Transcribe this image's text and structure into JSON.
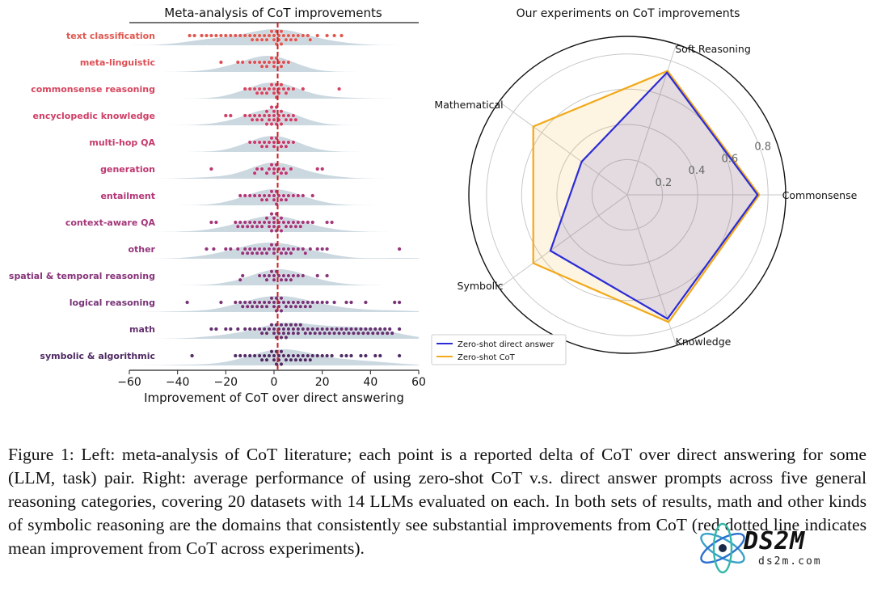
{
  "left_panel": {
    "title": "Meta-analysis of CoT improvements",
    "xlabel": "Improvement of CoT over direct answering",
    "xticks": [
      "−60",
      "−40",
      "−20",
      "0",
      "20",
      "40",
      "60"
    ]
  },
  "right_panel": {
    "title": "Our experiments on CoT improvements",
    "radial_ticks": [
      "0.2",
      "0.4",
      "0.6",
      "0.8"
    ],
    "legend": [
      "Zero-shot direct answer",
      "Zero-shot CoT"
    ]
  },
  "caption": "Figure 1: Left: meta-analysis of CoT literature; each point is a reported delta of CoT over direct answering for some (LLM, task) pair. Right: average performance of using zero-shot CoT v.s. direct answer prompts across five general reasoning categories, covering 20 datasets with 14 LLMs evaluated on each. In both sets of results, math and other kinds of symbolic reasoning are the domains that consistently see substantial improvements from CoT (red dotted line indicates mean improvement from CoT across experiments).",
  "watermark": {
    "logo": "DS2M",
    "site": "ds2m.com"
  },
  "colors": {
    "direct": "#2b2bd6",
    "cot": "#f2a91a",
    "mean_line": "#cc1f1f",
    "density": "#b9cbd6"
  },
  "chart_data": [
    {
      "type": "scatter",
      "title": "Meta-analysis of CoT improvements",
      "xlabel": "Improvement of CoT over direct answering",
      "xlim": [
        -60,
        60
      ],
      "mean_line": 2,
      "categories": [
        {
          "name": "text classification",
          "color": "#e0574f",
          "points": [
            -35,
            -33,
            -30,
            -28,
            -26,
            -24,
            -22,
            -20,
            -18,
            -16,
            -14,
            -12,
            -10,
            -9,
            -8,
            -7,
            -6,
            -5,
            -4,
            -3,
            -2,
            -1,
            0,
            0,
            1,
            1,
            2,
            2,
            3,
            3,
            4,
            5,
            6,
            7,
            8,
            9,
            10,
            12,
            14,
            15,
            18,
            22,
            25,
            28
          ]
        },
        {
          "name": "meta-linguistic",
          "color": "#dc4f55",
          "points": [
            -22,
            -15,
            -13,
            -10,
            -8,
            -6,
            -5,
            -4,
            -3,
            -2,
            -1,
            0,
            0,
            1,
            2,
            3,
            4,
            6
          ]
        },
        {
          "name": "commonsense reasoning",
          "color": "#d6455f",
          "points": [
            -12,
            -10,
            -8,
            -7,
            -6,
            -5,
            -4,
            -3,
            -2,
            -1,
            0,
            0,
            1,
            1,
            2,
            2,
            3,
            4,
            5,
            6,
            8,
            12,
            27
          ]
        },
        {
          "name": "encyclopedic knowledge",
          "color": "#cf3e66",
          "points": [
            -20,
            -18,
            -12,
            -10,
            -9,
            -8,
            -7,
            -6,
            -5,
            -4,
            -3,
            -3,
            -2,
            -2,
            -1,
            -1,
            0,
            0,
            0,
            1,
            1,
            2,
            2,
            3,
            3,
            4,
            5,
            6,
            7,
            8,
            9
          ]
        },
        {
          "name": "multi-hop QA",
          "color": "#c63a6c",
          "points": [
            -10,
            -8,
            -6,
            -5,
            -4,
            -3,
            -2,
            -1,
            0,
            0,
            1,
            2,
            3,
            4,
            5,
            6,
            8
          ]
        },
        {
          "name": "generation",
          "color": "#bd3770",
          "points": [
            -26,
            -8,
            -7,
            -5,
            -3,
            -2,
            -1,
            0,
            0,
            1,
            2,
            3,
            4,
            5,
            7,
            18,
            20
          ]
        },
        {
          "name": "entailment",
          "color": "#b33576",
          "points": [
            -14,
            -12,
            -10,
            -8,
            -6,
            -5,
            -4,
            -3,
            -2,
            -1,
            0,
            0,
            1,
            1,
            2,
            3,
            4,
            5,
            6,
            8,
            10,
            12,
            16
          ]
        },
        {
          "name": "context-aware QA",
          "color": "#a5367a",
          "points": [
            -26,
            -24,
            -16,
            -15,
            -14,
            -13,
            -12,
            -11,
            -10,
            -9,
            -8,
            -7,
            -6,
            -5,
            -4,
            -3,
            -2,
            -2,
            -1,
            -1,
            0,
            0,
            0,
            1,
            1,
            2,
            2,
            3,
            3,
            4,
            5,
            6,
            7,
            8,
            9,
            10,
            11,
            12,
            14,
            16,
            22,
            24
          ]
        },
        {
          "name": "other",
          "color": "#96357c",
          "points": [
            -28,
            -25,
            -20,
            -18,
            -15,
            -13,
            -12,
            -11,
            -10,
            -9,
            -8,
            -7,
            -6,
            -5,
            -4,
            -3,
            -2,
            -1,
            0,
            0,
            1,
            2,
            3,
            4,
            5,
            6,
            7,
            8,
            10,
            12,
            13,
            15,
            18,
            20,
            22,
            52
          ]
        },
        {
          "name": "spatial & temporal reasoning",
          "color": "#87347a",
          "points": [
            -14,
            -13,
            -6,
            -4,
            -3,
            -2,
            -1,
            0,
            0,
            1,
            2,
            3,
            4,
            5,
            6,
            7,
            8,
            10,
            12,
            18,
            22
          ]
        },
        {
          "name": "logical reasoning",
          "color": "#773276",
          "points": [
            -36,
            -22,
            -16,
            -14,
            -13,
            -12,
            -11,
            -10,
            -9,
            -8,
            -7,
            -6,
            -5,
            -4,
            -3,
            -2,
            -1,
            0,
            0,
            1,
            1,
            2,
            2,
            3,
            3,
            4,
            5,
            6,
            7,
            8,
            9,
            10,
            11,
            12,
            13,
            14,
            15,
            16,
            18,
            20,
            22,
            25,
            30,
            32,
            38,
            50,
            52
          ]
        },
        {
          "name": "math",
          "color": "#64306f",
          "points": [
            -26,
            -24,
            -20,
            -18,
            -15,
            -12,
            -10,
            -8,
            -6,
            -5,
            -4,
            -3,
            -2,
            -1,
            0,
            0,
            1,
            1,
            2,
            2,
            3,
            3,
            4,
            4,
            5,
            5,
            6,
            6,
            7,
            8,
            8,
            9,
            10,
            10,
            11,
            12,
            13,
            14,
            15,
            16,
            17,
            18,
            19,
            20,
            21,
            22,
            23,
            24,
            25,
            26,
            27,
            28,
            29,
            30,
            31,
            32,
            33,
            34,
            35,
            36,
            37,
            38,
            39,
            40,
            41,
            42,
            43,
            44,
            45,
            46,
            47,
            48,
            49,
            52
          ]
        },
        {
          "name": "symbolic & algorithmic",
          "color": "#4f2a63",
          "points": [
            -34,
            -16,
            -14,
            -12,
            -10,
            -8,
            -6,
            -5,
            -4,
            -3,
            -2,
            -1,
            0,
            0,
            1,
            1,
            2,
            2,
            3,
            3,
            4,
            5,
            6,
            7,
            8,
            9,
            10,
            11,
            12,
            13,
            14,
            15,
            16,
            18,
            20,
            22,
            24,
            28,
            30,
            32,
            36,
            38,
            42,
            44,
            52
          ]
        }
      ]
    },
    {
      "type": "radar",
      "title": "Our experiments on CoT improvements",
      "axes": [
        "Commonsense",
        "Soft Reasoning",
        "Mathematical",
        "Symbolic",
        "Knowledge"
      ],
      "rlim": [
        0,
        0.9
      ],
      "rticks": [
        0.2,
        0.4,
        0.6,
        0.8
      ],
      "series": [
        {
          "name": "Zero-shot direct answer",
          "color": "#2b2bd6",
          "values": [
            0.74,
            0.73,
            0.32,
            0.54,
            0.74
          ]
        },
        {
          "name": "Zero-shot CoT",
          "color": "#f2a91a",
          "values": [
            0.75,
            0.74,
            0.66,
            0.66,
            0.76
          ]
        }
      ]
    }
  ]
}
